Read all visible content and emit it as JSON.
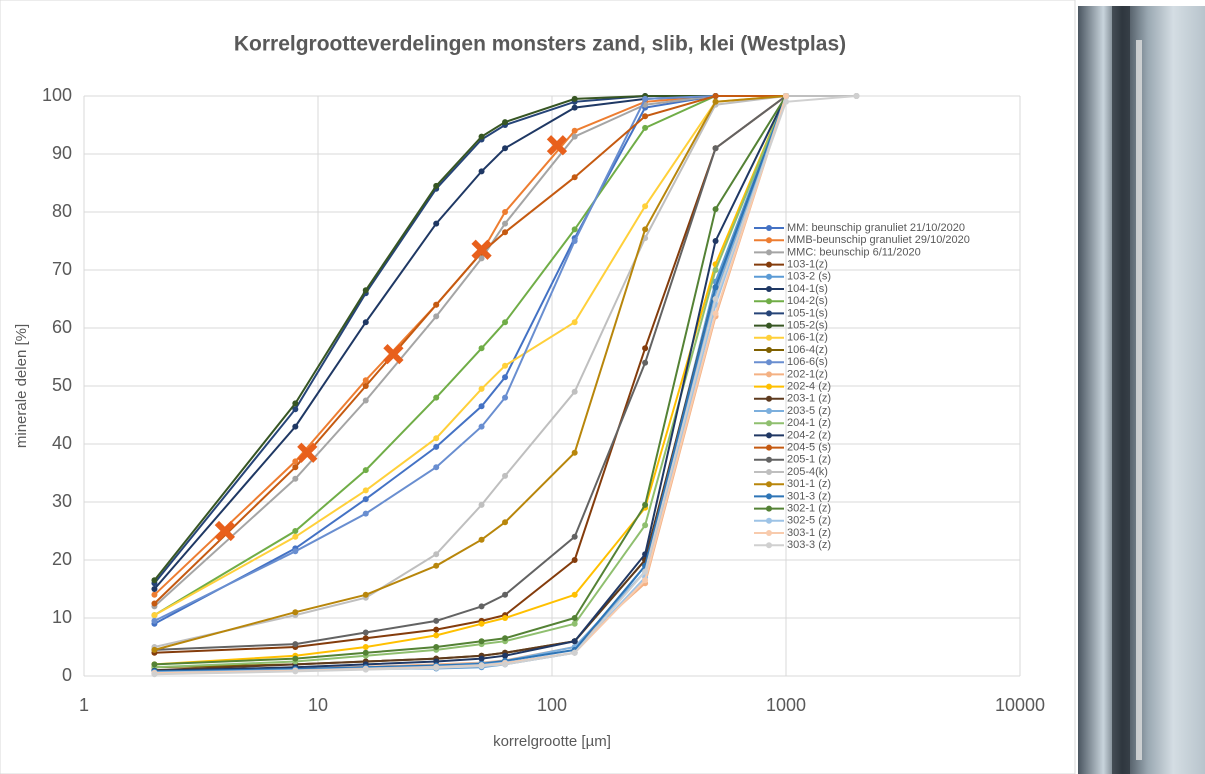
{
  "chart_data": {
    "type": "line",
    "title": "Korrelgrootteverdelingen monsters zand, slib, klei (Westplas)",
    "x_label": "korrelgrootte [µm]",
    "y_label": "minerale delen [%]",
    "x_scale": "log",
    "xlim": [
      1,
      10000
    ],
    "xticks": [
      1,
      10,
      100,
      1000,
      10000
    ],
    "ylim": [
      0,
      100
    ],
    "yticks": [
      0,
      10,
      20,
      30,
      40,
      50,
      60,
      70,
      80,
      90,
      100
    ],
    "grid": true,
    "legend": "right",
    "x": [
      2,
      8,
      16,
      32,
      50,
      63,
      125,
      250,
      500,
      1000,
      2000
    ],
    "series": [
      {
        "name": "MM: beunschip granuliet 21/10/2020",
        "color": "#4472c4",
        "values": [
          9,
          22,
          30.5,
          39.5,
          46.5,
          51.5,
          75.5,
          98,
          100,
          100,
          null
        ]
      },
      {
        "name": "MMB-beunschip granuliet 29/10/2020",
        "color": "#ed7d31",
        "values": [
          14,
          37,
          51,
          64,
          73,
          80,
          94,
          99,
          100,
          100,
          null
        ]
      },
      {
        "name": "MMC: beunschip 6/11/2020",
        "color": "#a5a5a5",
        "values": [
          12,
          34,
          47.5,
          62,
          72,
          78,
          93,
          98.5,
          100,
          100,
          100
        ]
      },
      {
        "name": "103-1(z)",
        "color": "#843c0c",
        "values": [
          4,
          5,
          6.5,
          8,
          9.5,
          10.5,
          20,
          56.5,
          91,
          100,
          null
        ]
      },
      {
        "name": "103-2 (s)",
        "color": "#5b9bd5",
        "values": [
          0.5,
          1,
          1.2,
          1.3,
          1.5,
          2,
          4,
          19,
          68,
          100,
          null
        ]
      },
      {
        "name": "104-1(s)",
        "color": "#1f3864",
        "values": [
          15,
          43,
          61,
          78,
          87,
          91,
          98,
          99.5,
          100,
          100,
          null
        ]
      },
      {
        "name": "104-2(s)",
        "color": "#70ad47",
        "values": [
          10.5,
          25,
          35.5,
          48,
          56.5,
          61,
          77,
          94.5,
          100,
          100,
          null
        ]
      },
      {
        "name": "105-1(s)",
        "color": "#264478",
        "values": [
          16,
          46,
          66,
          84,
          92.5,
          95,
          99,
          100,
          100,
          100,
          null
        ]
      },
      {
        "name": "105-2(s)",
        "color": "#375623",
        "values": [
          16.5,
          47,
          66.5,
          84.5,
          93,
          95.5,
          99.5,
          100,
          100,
          100,
          null
        ]
      },
      {
        "name": "106-1(z)",
        "color": "#ffd03a",
        "values": [
          10.5,
          24,
          32,
          41,
          49.5,
          53.5,
          61,
          81,
          99,
          100,
          null
        ]
      },
      {
        "name": "106-4(z)",
        "color": "#7f6000",
        "values": [
          1.5,
          2,
          2.5,
          3,
          3.5,
          4,
          6,
          20,
          66,
          100,
          null
        ]
      },
      {
        "name": "106-6(s)",
        "color": "#698ed0",
        "values": [
          9.5,
          21.5,
          28,
          36,
          43,
          48,
          75,
          99.5,
          100,
          100,
          null
        ]
      },
      {
        "name": "202-1(z)",
        "color": "#f4b183",
        "values": [
          0.8,
          1.3,
          1.6,
          2,
          2.3,
          2.7,
          5,
          16,
          62,
          100,
          null
        ]
      },
      {
        "name": "202-4 (z)",
        "color": "#ffc000",
        "values": [
          2,
          3.5,
          5,
          7,
          9,
          10,
          14,
          29,
          71,
          100,
          null
        ]
      },
      {
        "name": "203-1 (z)",
        "color": "#5e3a1e",
        "values": [
          1,
          2,
          2.5,
          3,
          3.5,
          4,
          6,
          20,
          67,
          100,
          null
        ]
      },
      {
        "name": "203-5 (z)",
        "color": "#7cafdd",
        "values": [
          0.7,
          1.2,
          1.5,
          1.8,
          2.2,
          2.6,
          5,
          18,
          66,
          100,
          null
        ]
      },
      {
        "name": "204-1 (z)",
        "color": "#8fbf6f",
        "values": [
          1.5,
          2.5,
          3.5,
          4.5,
          5.5,
          6,
          9,
          26,
          70,
          100,
          null
        ]
      },
      {
        "name": "204-2 (z)",
        "color": "#203864",
        "values": [
          0.9,
          1.5,
          2,
          2.5,
          3,
          3.5,
          6,
          21,
          75,
          100,
          null
        ]
      },
      {
        "name": "204-5 (s)",
        "color": "#c55a11",
        "values": [
          12.5,
          36,
          50,
          64,
          73,
          76.5,
          86,
          96.5,
          100,
          100,
          null
        ]
      },
      {
        "name": "205-1 (z)",
        "color": "#636363",
        "values": [
          4.5,
          5.5,
          7.5,
          9.5,
          12,
          14,
          24,
          54,
          91,
          100,
          null
        ]
      },
      {
        "name": "205-4(k)",
        "color": "#bfbfbf",
        "values": [
          5,
          10.5,
          13.5,
          21,
          29.5,
          34.5,
          49,
          75.5,
          98.5,
          100,
          100
        ]
      },
      {
        "name": "301-1 (z)",
        "color": "#b8860b",
        "values": [
          4.5,
          11,
          14,
          19,
          23.5,
          26.5,
          38.5,
          77,
          99,
          100,
          null
        ]
      },
      {
        "name": "301-3 (z)",
        "color": "#2e75b6",
        "values": [
          0.8,
          1.2,
          1.5,
          1.8,
          2.1,
          2.6,
          4.5,
          19,
          67,
          100,
          null
        ]
      },
      {
        "name": "302-1 (z)",
        "color": "#548235",
        "values": [
          2,
          3,
          4,
          5,
          6,
          6.5,
          10,
          29.5,
          80.5,
          100,
          null
        ]
      },
      {
        "name": "302-5 (z)",
        "color": "#9dc3e6",
        "values": [
          0.6,
          1,
          1.3,
          1.6,
          1.9,
          2.3,
          4,
          17,
          64,
          100,
          null
        ]
      },
      {
        "name": "303-1 (z)",
        "color": "#f8cbad",
        "values": [
          0.5,
          0.9,
          1.2,
          1.5,
          1.8,
          2.2,
          4,
          16.5,
          62.5,
          100,
          null
        ]
      },
      {
        "name": "303-3 (z)",
        "color": "#d0d0d0",
        "values": [
          0.3,
          0.8,
          1.1,
          1.4,
          1.7,
          2,
          4,
          18,
          65,
          99,
          100
        ]
      }
    ],
    "highlight_points": {
      "color": "#e8601c",
      "x": [
        4,
        9,
        21,
        50,
        105
      ],
      "values": [
        25,
        38.5,
        55.5,
        73.5,
        91.5
      ]
    }
  }
}
